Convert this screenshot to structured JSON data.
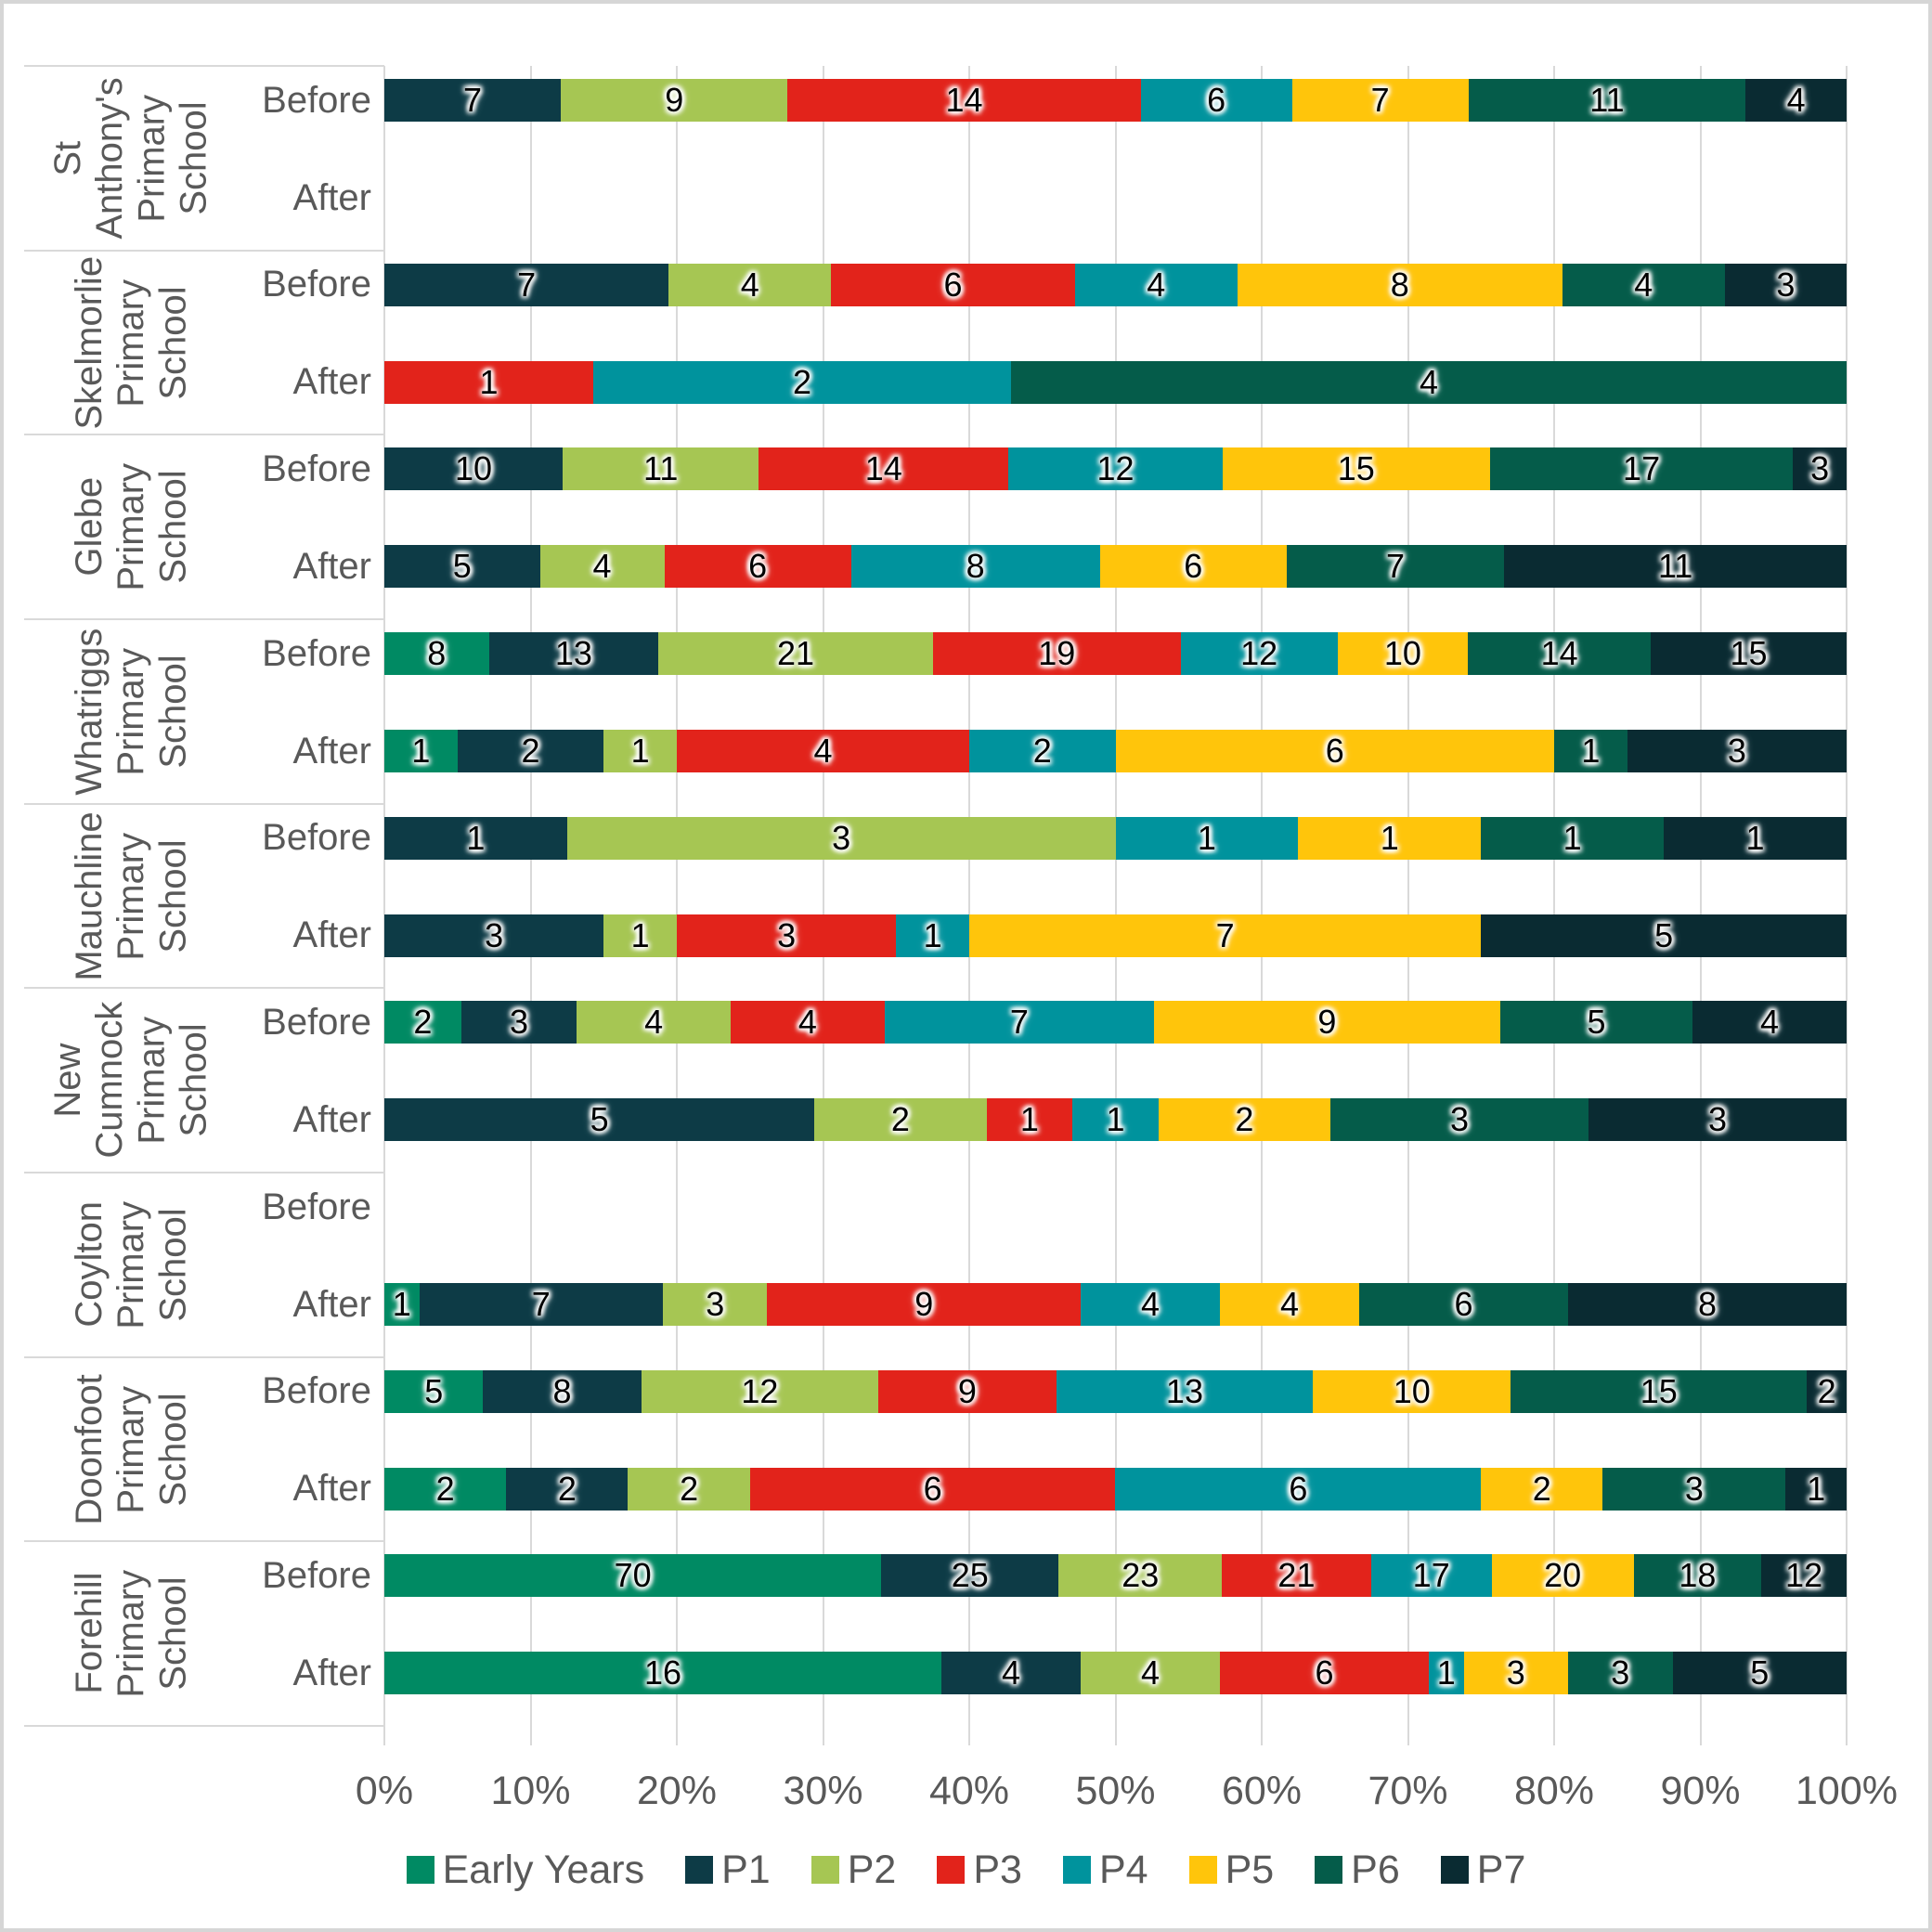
{
  "chart_data": {
    "type": "bar",
    "variant": "100-percent-stacked-horizontal",
    "title": "",
    "xlabel": "",
    "ylabel": "",
    "x_axis": {
      "range_percent": [
        0,
        100
      ],
      "ticks": [
        "0%",
        "10%",
        "20%",
        "30%",
        "40%",
        "50%",
        "60%",
        "70%",
        "80%",
        "90%",
        "100%"
      ],
      "grid": true
    },
    "series": [
      {
        "name": "Early Years",
        "color": "#008A63"
      },
      {
        "name": "P1",
        "color": "#0D3B46"
      },
      {
        "name": "P2",
        "color": "#A6C653"
      },
      {
        "name": "P3",
        "color": "#E2231B"
      },
      {
        "name": "P4",
        "color": "#00939D"
      },
      {
        "name": "P5",
        "color": "#FFC50B"
      },
      {
        "name": "P6",
        "color": "#055C4A"
      },
      {
        "name": "P7",
        "color": "#0A2B32"
      }
    ],
    "row_labels": [
      "Before",
      "After"
    ],
    "groups": [
      {
        "school": "St Anthony's Primary School",
        "rows": [
          {
            "label": "Before",
            "values": [
              null,
              7,
              9,
              14,
              6,
              7,
              11,
              4
            ]
          },
          {
            "label": "After",
            "values": [
              null,
              null,
              null,
              null,
              null,
              null,
              null,
              null
            ]
          }
        ]
      },
      {
        "school": "Skelmorlie Primary School",
        "rows": [
          {
            "label": "Before",
            "values": [
              null,
              7,
              4,
              6,
              4,
              8,
              4,
              3
            ]
          },
          {
            "label": "After",
            "values": [
              null,
              null,
              null,
              1,
              2,
              null,
              4,
              null
            ]
          }
        ]
      },
      {
        "school": "Glebe Primary School",
        "rows": [
          {
            "label": "Before",
            "values": [
              null,
              10,
              11,
              14,
              12,
              15,
              17,
              3
            ]
          },
          {
            "label": "After",
            "values": [
              null,
              5,
              4,
              6,
              8,
              6,
              7,
              11
            ]
          }
        ]
      },
      {
        "school": "Whatriggs Primary School",
        "rows": [
          {
            "label": "Before",
            "values": [
              8,
              13,
              21,
              19,
              12,
              10,
              14,
              15
            ]
          },
          {
            "label": "After",
            "values": [
              1,
              2,
              1,
              4,
              2,
              6,
              1,
              3
            ]
          }
        ]
      },
      {
        "school": "Mauchline Primary School",
        "rows": [
          {
            "label": "Before",
            "values": [
              null,
              1,
              3,
              null,
              1,
              1,
              1,
              1
            ]
          },
          {
            "label": "After",
            "values": [
              null,
              3,
              1,
              3,
              1,
              7,
              null,
              5
            ]
          }
        ]
      },
      {
        "school": "New Cumnock Primary School",
        "rows": [
          {
            "label": "Before",
            "values": [
              2,
              3,
              4,
              4,
              7,
              9,
              5,
              4
            ]
          },
          {
            "label": "After",
            "values": [
              null,
              5,
              2,
              1,
              1,
              2,
              3,
              3
            ]
          }
        ]
      },
      {
        "school": "Coylton Primary School",
        "rows": [
          {
            "label": "Before",
            "values": [
              null,
              null,
              null,
              null,
              null,
              null,
              null,
              null
            ]
          },
          {
            "label": "After",
            "values": [
              1,
              7,
              3,
              9,
              4,
              4,
              6,
              8
            ]
          }
        ]
      },
      {
        "school": "Doonfoot Primary School",
        "rows": [
          {
            "label": "Before",
            "values": [
              5,
              8,
              12,
              9,
              13,
              10,
              15,
              2
            ]
          },
          {
            "label": "After",
            "values": [
              2,
              2,
              2,
              6,
              6,
              2,
              3,
              1
            ]
          }
        ]
      },
      {
        "school": "Forehill Primary School",
        "rows": [
          {
            "label": "Before",
            "values": [
              70,
              25,
              23,
              21,
              17,
              20,
              18,
              12
            ]
          },
          {
            "label": "After",
            "values": [
              16,
              4,
              4,
              6,
              1,
              3,
              3,
              5
            ]
          }
        ]
      }
    ]
  },
  "style_colors": {
    "gridline": "#d9d9d9",
    "axis_text": "#595959",
    "data_label": "#000000"
  }
}
